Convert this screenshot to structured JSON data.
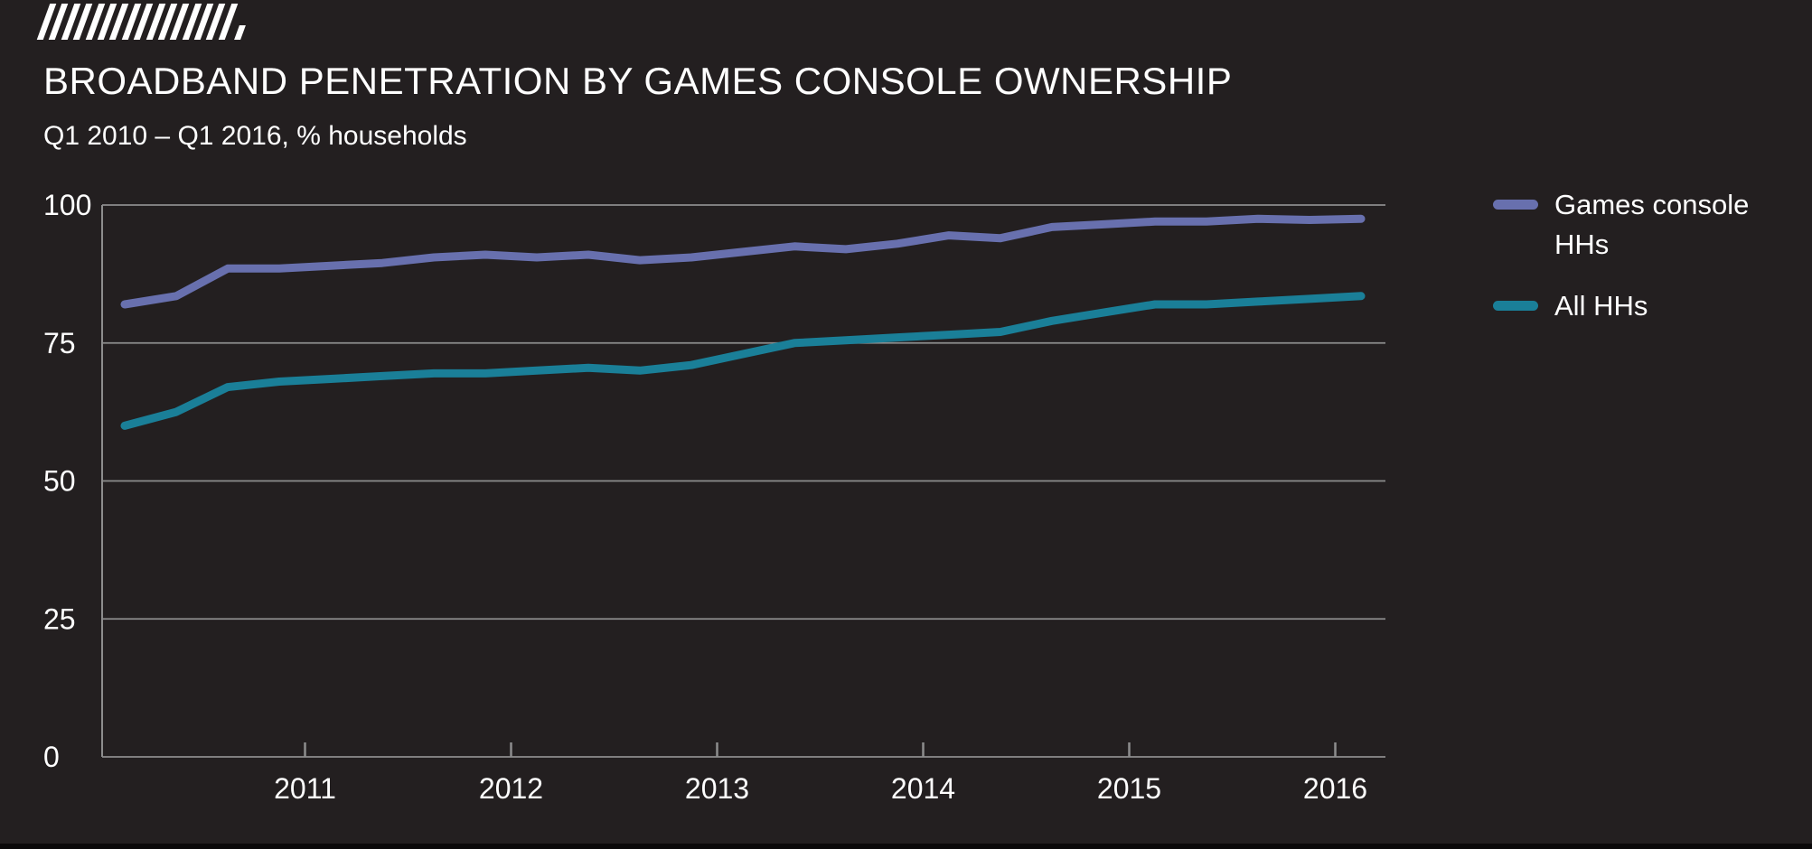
{
  "header": {
    "title": "BROADBAND PENETRATION BY GAMES CONSOLE OWNERSHIP",
    "subtitle": "Q1 2010 – Q1 2016, % households"
  },
  "colors": {
    "background": "#231f20",
    "grid": "#8d8d8d",
    "text": "#ffffff",
    "games_console_line": "#6870ae",
    "all_hhs_line": "#1a7f98"
  },
  "chart_data": {
    "type": "line",
    "title": "BROADBAND PENETRATION BY GAMES CONSOLE OWNERSHIP",
    "subtitle": "Q1 2010 – Q1 2016, % households",
    "ylabel": "% households",
    "ylim": [
      0,
      100
    ],
    "grid": "horizontal",
    "legend_position": "right",
    "x": [
      "Q1 2010",
      "Q2 2010",
      "Q3 2010",
      "Q4 2010",
      "Q1 2011",
      "Q2 2011",
      "Q3 2011",
      "Q4 2011",
      "Q1 2012",
      "Q2 2012",
      "Q3 2012",
      "Q4 2012",
      "Q1 2013",
      "Q2 2013",
      "Q3 2013",
      "Q4 2013",
      "Q1 2014",
      "Q2 2014",
      "Q3 2014",
      "Q4 2014",
      "Q1 2015",
      "Q2 2015",
      "Q3 2015",
      "Q4 2015",
      "Q1 2016"
    ],
    "series": [
      {
        "name": "Games console HHs",
        "color": "#6870ae",
        "values": [
          82,
          83.5,
          88.5,
          88.5,
          89,
          89.5,
          90.5,
          91,
          90.5,
          91,
          90,
          90.5,
          91.5,
          92.5,
          92,
          93,
          94.5,
          94,
          96,
          96.5,
          97,
          97,
          97.5,
          97.3,
          97.5
        ]
      },
      {
        "name": "All HHs",
        "color": "#1a7f98",
        "values": [
          60,
          62.5,
          67,
          68,
          68.5,
          69,
          69.5,
          69.5,
          70,
          70.5,
          70,
          71,
          73,
          75,
          75.5,
          76,
          76.5,
          77,
          79,
          80.5,
          82,
          82,
          82.5,
          83,
          83.5
        ]
      }
    ],
    "yticks": [
      0,
      25,
      50,
      75,
      100
    ],
    "xticks": {
      "labels": [
        "2011",
        "2012",
        "2013",
        "2014",
        "2015",
        "2016"
      ],
      "quarter_index": [
        3.5,
        7.5,
        11.5,
        15.5,
        19.5,
        23.5
      ]
    }
  }
}
